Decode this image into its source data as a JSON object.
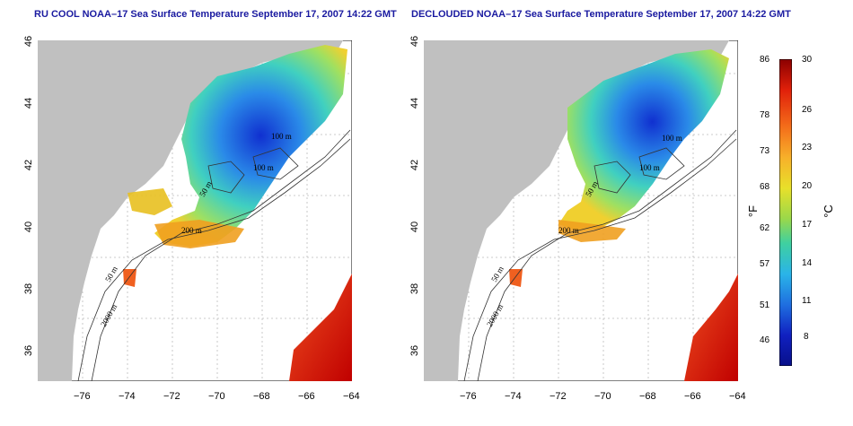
{
  "left_map": {
    "title": "RU COOL NOAA–17 Sea Surface Temperature September 17, 2007 14:22 GMT"
  },
  "right_map": {
    "title": "DECLOUDED NOAA–17 Sea Surface Temperature September 17, 2007 14:22 GMT"
  },
  "axes": {
    "lon_ticks": [
      "−76",
      "−74",
      "−72",
      "−70",
      "−68",
      "−66",
      "−64"
    ],
    "lat_ticks": [
      "46",
      "44",
      "42",
      "40",
      "38",
      "36"
    ]
  },
  "contour_labels": {
    "left": [
      "100 m",
      "50 m",
      "200 m",
      "50 m",
      "2000 m",
      "100 m"
    ],
    "right": [
      "100 m",
      "50 m",
      "200 m",
      "50 m",
      "2000 m",
      "100 m"
    ]
  },
  "colorbar": {
    "fahrenheit_ticks": [
      "86",
      "78",
      "73",
      "68",
      "62",
      "57",
      "51",
      "46"
    ],
    "celsius_ticks": [
      "30",
      "26",
      "23",
      "20",
      "17",
      "14",
      "11",
      "8"
    ],
    "fahrenheit_unit": "°F",
    "celsius_unit": "°C",
    "colors": [
      "#8b0000",
      "#e0200a",
      "#f46d1a",
      "#f7b02a",
      "#e8e02a",
      "#9ad84a",
      "#3fd0a0",
      "#2ab4e8",
      "#1f6fe0",
      "#1020c0",
      "#08108a"
    ]
  },
  "colors": {
    "land": "#c0c0c0",
    "ocean": "#ffffff",
    "title": "#1a1aa0"
  }
}
